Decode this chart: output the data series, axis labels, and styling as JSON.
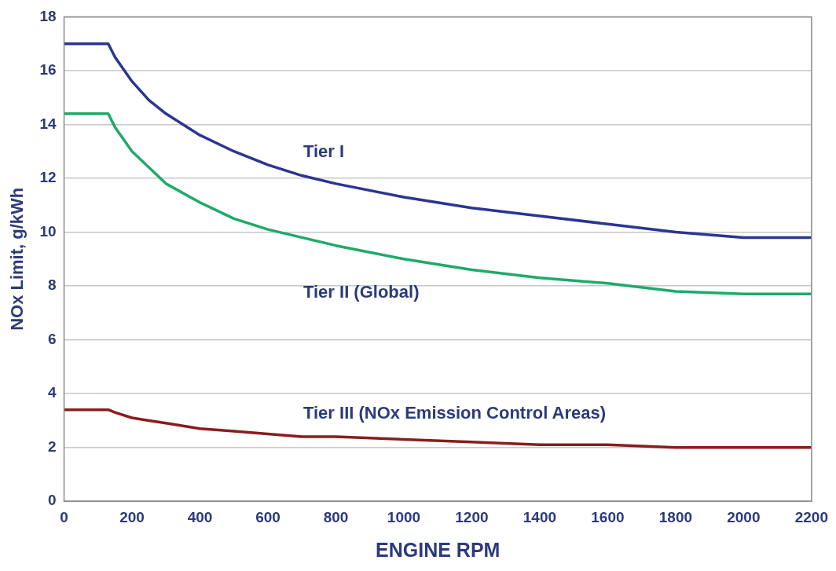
{
  "chart_data": {
    "type": "line",
    "xlabel": "ENGINE RPM",
    "ylabel": "NOx Limit, g/kWh",
    "x": [
      0,
      130,
      150,
      200,
      250,
      300,
      400,
      500,
      600,
      700,
      800,
      1000,
      1200,
      1400,
      1600,
      1800,
      2000,
      2200
    ],
    "series": [
      {
        "name": "Tier I",
        "color": "#2b3592",
        "values": [
          17,
          17,
          16.5,
          15.6,
          14.9,
          14.4,
          13.6,
          13.0,
          12.5,
          12.1,
          11.8,
          11.3,
          10.9,
          10.6,
          10.3,
          10.0,
          9.8,
          9.8
        ]
      },
      {
        "name": "Tier II (Global)",
        "color": "#1faa6a",
        "values": [
          14.4,
          14.4,
          13.9,
          13.0,
          12.4,
          11.8,
          11.1,
          10.5,
          10.1,
          9.8,
          9.5,
          9.0,
          8.6,
          8.3,
          8.1,
          7.8,
          7.7,
          7.7
        ]
      },
      {
        "name": "Tier III (NOx Emission Control Areas)",
        "color": "#8b1c1c",
        "values": [
          3.4,
          3.4,
          3.3,
          3.1,
          3.0,
          2.9,
          2.7,
          2.6,
          2.5,
          2.4,
          2.4,
          2.3,
          2.2,
          2.1,
          2.1,
          2.0,
          2.0,
          2.0
        ]
      }
    ],
    "xlim": [
      0,
      2200
    ],
    "xticks": [
      0,
      200,
      400,
      600,
      800,
      1000,
      1200,
      1400,
      1600,
      1800,
      2000,
      2200
    ],
    "ylim": [
      0,
      18
    ],
    "yticks": [
      0,
      2,
      4,
      6,
      8,
      10,
      12,
      14,
      16,
      18
    ],
    "grid": "y",
    "legend": false,
    "marker": "none",
    "line_style": "solid"
  }
}
